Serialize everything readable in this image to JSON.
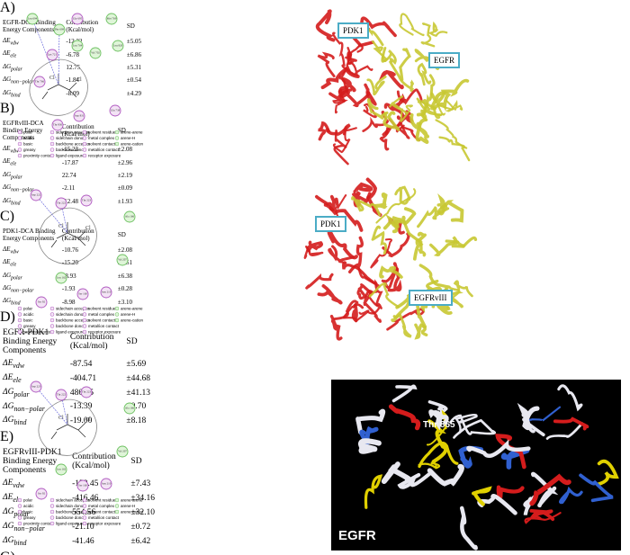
{
  "legend": {
    "columns": [
      [
        "polar",
        "acidic",
        "basic",
        "greasy",
        "proximity contour"
      ],
      [
        "sidechain acceptor",
        "sidechain donor",
        "backbone acceptor",
        "backbone donor",
        "ligand exposure"
      ],
      [
        "solvent residue",
        "metal complex",
        "solvent contact",
        "metal/ion contact",
        "receptor exposure"
      ],
      [
        "arene-arene",
        "arene-H",
        "arene-cation"
      ]
    ]
  },
  "panels": [
    {
      "letter": "A)",
      "residues": [
        {
          "label": "Leu 694",
          "type": "greasy"
        },
        {
          "label": "Phe 699",
          "type": "greasy"
        },
        {
          "label": "Gly 695",
          "type": "polar"
        },
        {
          "label": "Lys 721",
          "type": "polar"
        },
        {
          "label": "Thr 766",
          "type": "polar"
        },
        {
          "label": "Leu 764",
          "type": "greasy"
        },
        {
          "label": "Val 702",
          "type": "greasy"
        },
        {
          "label": "Met 769",
          "type": "greasy"
        },
        {
          "label": "Leu 820",
          "type": "greasy"
        },
        {
          "label": "Thr 830",
          "type": "polar"
        },
        {
          "label": "Asp 831",
          "type": "polar"
        },
        {
          "label": "Glu 738",
          "type": "polar"
        }
      ],
      "table": {
        "title": "EGFR-DCA Binding Energy Components",
        "col_headers": [
          "Contribution (Kcal/mol)",
          "SD"
        ],
        "rows": [
          {
            "symbol": "ΔE",
            "sub": "vdw",
            "value": "-12.22",
            "sd": "±5.05"
          },
          {
            "symbol": "ΔE",
            "sub": "ele",
            "value": "-6.78",
            "sd": "±6.86"
          },
          {
            "symbol": "ΔG",
            "sub": "polar",
            "value": "12.75",
            "sd": "±5.31"
          },
          {
            "symbol": "ΔG",
            "sub": "non−polar",
            "value": "-1.84",
            "sd": "±0.54"
          },
          {
            "symbol": "ΔG",
            "sub": "bind",
            "value": "-8.09",
            "sd": "±4.29"
          }
        ]
      }
    },
    {
      "letter": "B)",
      "residues": [
        {
          "label": "Asp 222",
          "type": "polar"
        },
        {
          "label": "Thr 222",
          "type": "polar"
        },
        {
          "label": "Thr 223",
          "type": "polar"
        },
        {
          "label": "Ala 166",
          "type": "greasy"
        },
        {
          "label": "Val 207",
          "type": "greasy"
        },
        {
          "label": "Leu 162",
          "type": "greasy"
        },
        {
          "label": "Ser 92",
          "type": "polar"
        },
        {
          "label": "Asn 210",
          "type": "polar"
        },
        {
          "label": "Ser 160",
          "type": "polar"
        }
      ],
      "table": {
        "title": "EGFRvIII-DCA Binding Energy Components",
        "col_headers": [
          "Contribution (Kcal/mol)",
          "SD"
        ],
        "rows": [
          {
            "symbol": "ΔE",
            "sub": "vdw",
            "value": "-15.23",
            "sd": "±2.08"
          },
          {
            "symbol": "ΔE",
            "sub": "ele",
            "value": "-17.87",
            "sd": "±2.96"
          },
          {
            "symbol": "ΔG",
            "sub": "polar",
            "value": "22.74",
            "sd": "±2.19"
          },
          {
            "symbol": "ΔG",
            "sub": "non−polar",
            "value": "-2.11",
            "sd": "±0.09"
          },
          {
            "symbol": "ΔG",
            "sub": "bind",
            "value": "-12.48",
            "sd": "±1.93"
          }
        ]
      }
    },
    {
      "letter": "C)",
      "residues": [
        {
          "label": "Asp 223",
          "type": "polar"
        },
        {
          "label": "Thr 222",
          "type": "polar"
        },
        {
          "label": "Thr 223",
          "type": "polar"
        },
        {
          "label": "Ala 166",
          "type": "greasy"
        },
        {
          "label": "Val 207",
          "type": "greasy"
        },
        {
          "label": "Leu 162",
          "type": "greasy"
        },
        {
          "label": "Ser 92",
          "type": "polar"
        },
        {
          "label": "Asn 210",
          "type": "polar"
        },
        {
          "label": "Ser 160",
          "type": "polar"
        }
      ],
      "table": {
        "title": "PDK1-DCA Binding Energy Components",
        "col_headers": [
          "Contribution (Kcal/mol)",
          "SD"
        ],
        "rows": [
          {
            "symbol": "ΔE",
            "sub": "vdw",
            "value": "-10.76",
            "sd": "±2.08"
          },
          {
            "symbol": "ΔE",
            "sub": "ele",
            "value": "-15.20",
            "sd": "±8.51"
          },
          {
            "symbol": "ΔG",
            "sub": "polar",
            "value": "18.93",
            "sd": "±6.38"
          },
          {
            "symbol": "ΔG",
            "sub": "non−polar",
            "value": "-1.93",
            "sd": "±0.28"
          },
          {
            "symbol": "ΔG",
            "sub": "bind",
            "value": "-8.98",
            "sd": "±3.10"
          }
        ]
      }
    },
    {
      "letter": "D)",
      "protein_labels": [
        "PDK1",
        "EGFR"
      ],
      "table": {
        "title": "EGFR-PDK1 Binding Energy Components",
        "col_headers": [
          "Contribution (Kcal/mol)",
          "SD"
        ],
        "rows": [
          {
            "symbol": "ΔE",
            "sub": "vdw",
            "value": "-87.54",
            "sd": "±5.69"
          },
          {
            "symbol": "ΔE",
            "sub": "ele",
            "value": "-404.71",
            "sd": "±44.68"
          },
          {
            "symbol": "ΔG",
            "sub": "polar",
            "value": "486.65",
            "sd": "±41.13"
          },
          {
            "symbol": "ΔG",
            "sub": "non−polar",
            "value": "-13.39",
            "sd": "±0.70"
          },
          {
            "symbol": "ΔG",
            "sub": "bind",
            "value": "-19.00",
            "sd": "±8.18"
          }
        ]
      }
    },
    {
      "letter": "E)",
      "protein_labels": [
        "PDK1",
        "EGFRvIII"
      ],
      "table": {
        "title": "EGFRvIII-PDK1 Binding Energy Components",
        "col_headers": [
          "Contribution (Kcal/mol)",
          "SD"
        ],
        "rows": [
          {
            "symbol": "ΔE",
            "sub": "vdw",
            "value": "-158.45",
            "sd": "±7.43"
          },
          {
            "symbol": "ΔE",
            "sub": "ele",
            "value": "-416.46",
            "sd": "±34.16"
          },
          {
            "symbol": "ΔG",
            "sub": "polar",
            "value": "554.56",
            "sd": "±32.10"
          },
          {
            "symbol": "ΔG",
            "sub": "non−polar",
            "value": "-21.10",
            "sd": "±0.72"
          },
          {
            "symbol": "ΔG",
            "sub": "bind",
            "value": "-41.46",
            "sd": "±6.42"
          }
        ]
      }
    },
    {
      "letter": "G)",
      "residue_label": "Thr 865",
      "protein_name": "EGFR"
    }
  ]
}
